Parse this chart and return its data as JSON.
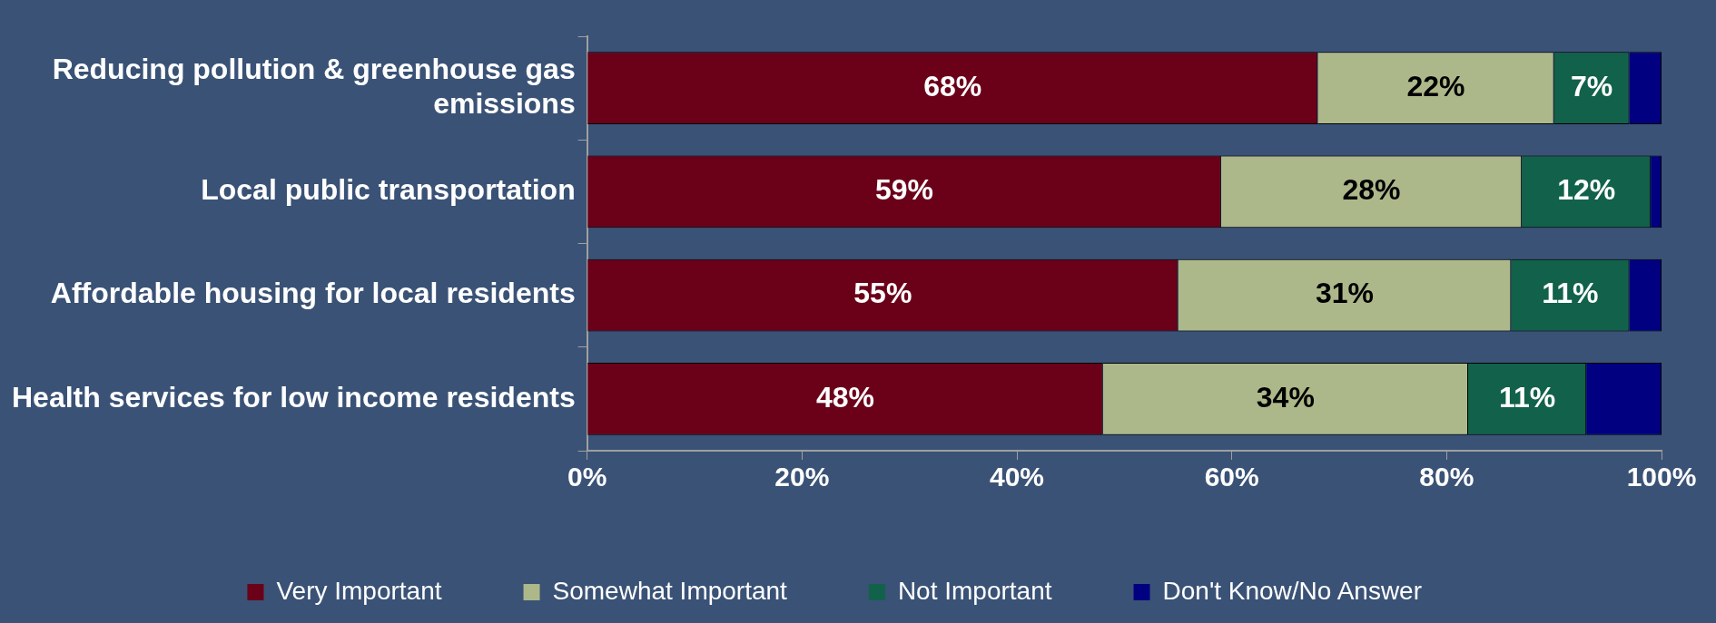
{
  "chart_data": {
    "type": "bar",
    "orientation": "horizontal",
    "stacked": true,
    "categories": [
      "Reducing pollution & greenhouse gas emissions",
      "Local public transportation",
      "Affordable housing for local residents",
      "Health services for low income residents"
    ],
    "series": [
      {
        "name": "Very Important",
        "color": "#6b0019",
        "values": [
          68,
          59,
          55,
          48
        ],
        "value_labels": [
          "68%",
          "59%",
          "55%",
          "48%"
        ]
      },
      {
        "name": "Somewhat Important",
        "color": "#adb88a",
        "values": [
          22,
          28,
          31,
          34
        ],
        "value_labels": [
          "22%",
          "28%",
          "31%",
          "34%"
        ]
      },
      {
        "name": "Not Important",
        "color": "#12614a",
        "values": [
          7,
          12,
          11,
          11
        ],
        "value_labels": [
          "7%",
          "12%",
          "11%",
          "11%"
        ]
      },
      {
        "name": "Don't Know/No Answer",
        "color": "#000080",
        "values": [
          3,
          1,
          3,
          7
        ]
      }
    ],
    "xlim": [
      0,
      100
    ],
    "xticks": [
      {
        "value": 0,
        "label": "0%"
      },
      {
        "value": 20,
        "label": "20%"
      },
      {
        "value": 40,
        "label": "40%"
      },
      {
        "value": 60,
        "label": "60%"
      },
      {
        "value": 80,
        "label": "80%"
      },
      {
        "value": 100,
        "label": "100%"
      }
    ],
    "grid": false,
    "legend": "bottom"
  }
}
